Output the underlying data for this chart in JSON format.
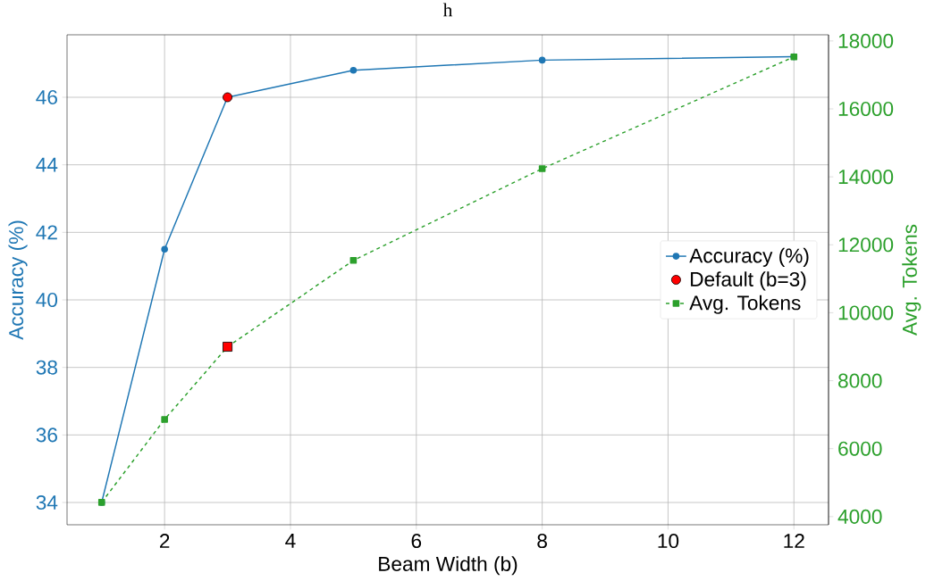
{
  "chart_data": {
    "type": "line",
    "title": "h",
    "xlabel": "Beam Width (b)",
    "ylabel": "Accuracy (%)",
    "y2label": "Avg. Tokens",
    "x": [
      1,
      2,
      3,
      5,
      8,
      12
    ],
    "series": [
      {
        "name": "Accuracy (%)",
        "color": "#1f77b4",
        "values": [
          34.0,
          41.5,
          46.0,
          46.8,
          47.1,
          47.2
        ],
        "marker": "circle",
        "line_style": "solid"
      },
      {
        "name": "Default (b=3)",
        "type": "scatter",
        "color": "#ff0000",
        "x": [
          3
        ],
        "values": [
          46.0
        ],
        "marker": "circle"
      },
      {
        "name": "Avg. Tokens",
        "color": "#2ca02c",
        "axis": "y2",
        "values": [
          4420,
          6860,
          9000,
          11540,
          14240,
          17530
        ],
        "marker": "square",
        "line_style": "dashed"
      },
      {
        "type": "scatter",
        "color": "#ff0000",
        "axis": "y2",
        "x": [
          3
        ],
        "values": [
          9000
        ],
        "marker": "square"
      }
    ],
    "xlim": [
      0.45,
      12.55
    ],
    "ylim": [
      33.34,
      47.85
    ],
    "y2lim": [
      3760,
      18180
    ],
    "xticks": [
      2,
      4,
      6,
      8,
      10,
      12
    ],
    "yticks": [
      34,
      36,
      38,
      40,
      42,
      44,
      46
    ],
    "y2ticks": [
      4000,
      6000,
      8000,
      10000,
      12000,
      14000,
      16000,
      18000
    ],
    "grid": true,
    "legend": "right"
  }
}
